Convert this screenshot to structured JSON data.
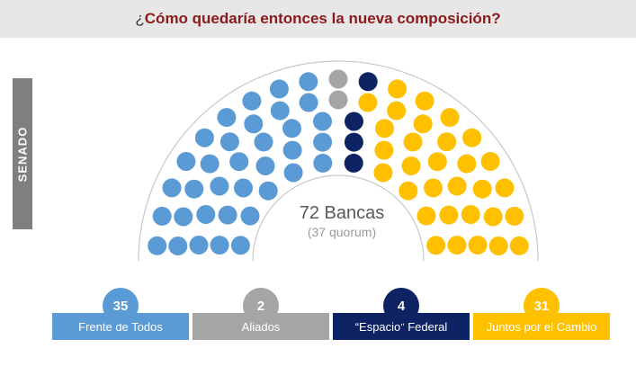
{
  "title": {
    "prefix": "¿",
    "text": "Cómo quedaría entonces la nueva composición?"
  },
  "side_label": "SENADO",
  "chart_data": {
    "type": "parliament",
    "total_label": "72 Bancas",
    "quorum_label": "(37 quorum)",
    "series": [
      {
        "name": "Frente de Todos",
        "value": 35,
        "color": "#5b9bd5"
      },
      {
        "name": "Aliados",
        "value": 2,
        "color": "#a5a5a5"
      },
      {
        "name": "“Espacio” Federal",
        "value": 4,
        "color": "#0d2363"
      },
      {
        "name": "Juntos por el Cambio",
        "value": 31,
        "color": "#ffc000"
      }
    ]
  }
}
